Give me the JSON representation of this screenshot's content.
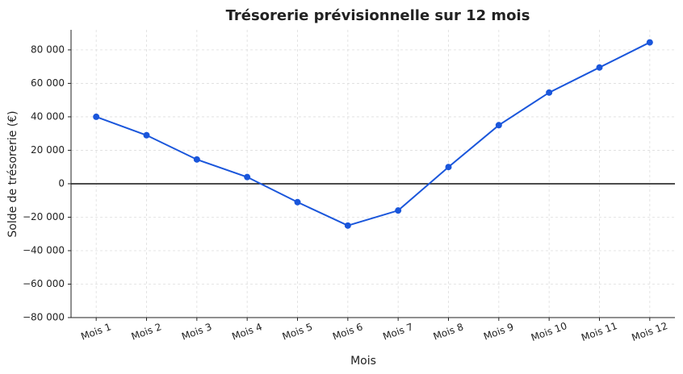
{
  "chart_data": {
    "type": "line",
    "title": "Trésorerie prévisionnelle sur 12 mois",
    "xlabel": "Mois",
    "ylabel": "Solde de trésorerie (€)",
    "categories": [
      "Mois 1",
      "Mois 2",
      "Mois 3",
      "Mois 4",
      "Mois 5",
      "Mois 6",
      "Mois 7",
      "Mois 8",
      "Mois 9",
      "Mois 10",
      "Mois 11",
      "Mois 12"
    ],
    "series": [
      {
        "name": "Solde de trésorerie",
        "color": "#1a56db",
        "values": [
          40000,
          29000,
          14500,
          4000,
          -11000,
          -25000,
          -16000,
          10000,
          35000,
          54500,
          69500,
          84500
        ]
      }
    ],
    "ylim": [
      -80000,
      92000
    ],
    "yticks": [
      {
        "value": -80000,
        "label": "−80 000"
      },
      {
        "value": -60000,
        "label": "−60 000"
      },
      {
        "value": -40000,
        "label": "−40 000"
      },
      {
        "value": -20000,
        "label": "−20 000"
      },
      0,
      {
        "value": 20000,
        "label": "20 000"
      },
      {
        "value": 40000,
        "label": "40 000"
      },
      {
        "value": 60000,
        "label": "60 000"
      },
      {
        "value": 80000,
        "label": "80 000"
      }
    ],
    "grid": true
  }
}
